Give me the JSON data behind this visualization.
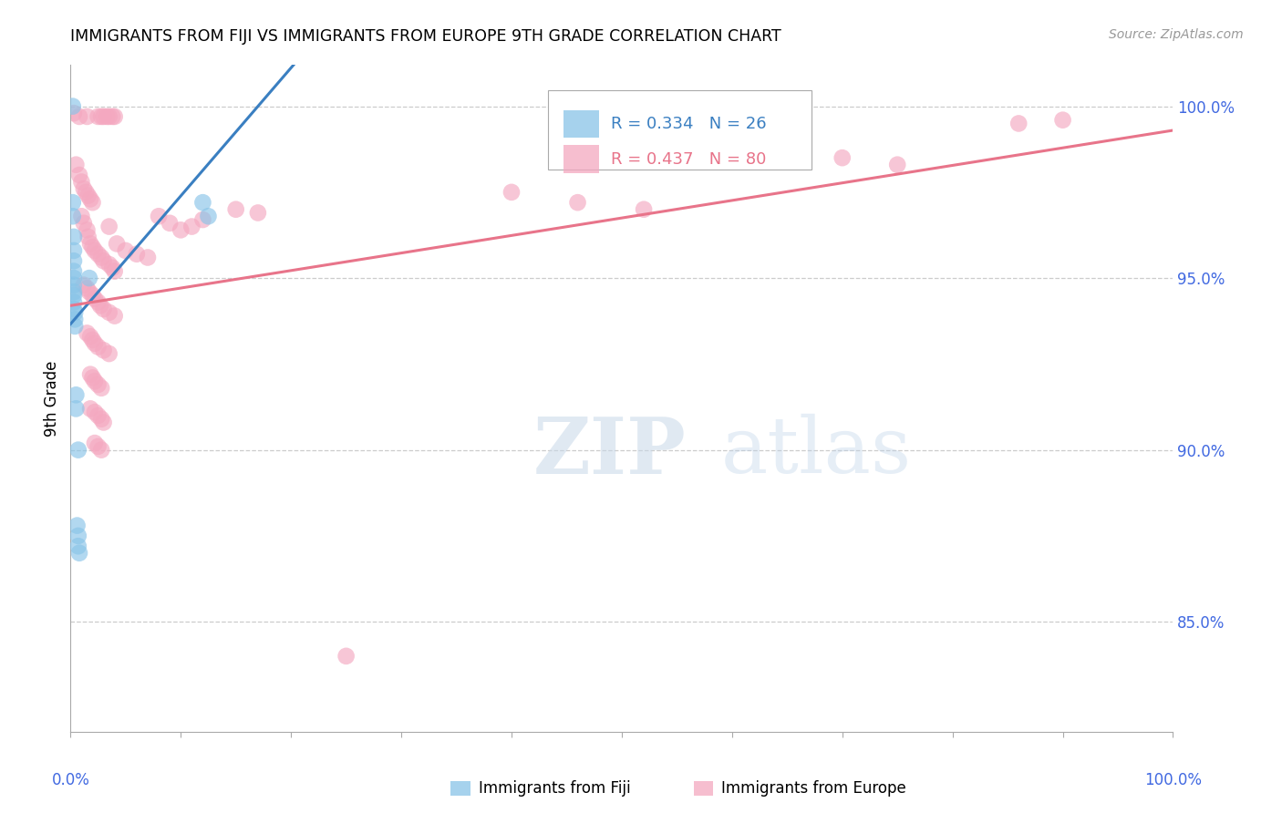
{
  "title": "IMMIGRANTS FROM FIJI VS IMMIGRANTS FROM EUROPE 9TH GRADE CORRELATION CHART",
  "source": "Source: ZipAtlas.com",
  "ylabel": "9th Grade",
  "watermark_zip": "ZIP",
  "watermark_atlas": "atlas",
  "ytick_labels": [
    "100.0%",
    "95.0%",
    "90.0%",
    "85.0%"
  ],
  "ytick_values": [
    1.0,
    0.95,
    0.9,
    0.85
  ],
  "xlim": [
    0.0,
    1.0
  ],
  "ylim": [
    0.818,
    1.012
  ],
  "fiji_color": "#89c4e8",
  "europe_color": "#f4a8c0",
  "fiji_line_color": "#3a7fc1",
  "europe_line_color": "#e8748a",
  "legend_fiji_R": "0.334",
  "legend_fiji_N": "26",
  "legend_europe_R": "0.437",
  "legend_europe_N": "80",
  "fiji_points": [
    [
      0.002,
      1.0
    ],
    [
      0.002,
      0.972
    ],
    [
      0.002,
      0.968
    ],
    [
      0.003,
      0.962
    ],
    [
      0.003,
      0.958
    ],
    [
      0.003,
      0.955
    ],
    [
      0.003,
      0.952
    ],
    [
      0.003,
      0.95
    ],
    [
      0.003,
      0.948
    ],
    [
      0.003,
      0.946
    ],
    [
      0.003,
      0.945
    ],
    [
      0.003,
      0.943
    ],
    [
      0.003,
      0.941
    ],
    [
      0.004,
      0.94
    ],
    [
      0.004,
      0.938
    ],
    [
      0.004,
      0.936
    ],
    [
      0.017,
      0.95
    ],
    [
      0.007,
      0.9
    ],
    [
      0.006,
      0.878
    ],
    [
      0.007,
      0.875
    ],
    [
      0.007,
      0.872
    ],
    [
      0.008,
      0.87
    ],
    [
      0.12,
      0.972
    ],
    [
      0.125,
      0.968
    ],
    [
      0.005,
      0.916
    ],
    [
      0.005,
      0.912
    ]
  ],
  "europe_points": [
    [
      0.003,
      0.998
    ],
    [
      0.008,
      0.997
    ],
    [
      0.015,
      0.997
    ],
    [
      0.025,
      0.997
    ],
    [
      0.028,
      0.997
    ],
    [
      0.03,
      0.997
    ],
    [
      0.033,
      0.997
    ],
    [
      0.035,
      0.997
    ],
    [
      0.038,
      0.997
    ],
    [
      0.04,
      0.997
    ],
    [
      0.005,
      0.983
    ],
    [
      0.008,
      0.98
    ],
    [
      0.01,
      0.978
    ],
    [
      0.012,
      0.976
    ],
    [
      0.014,
      0.975
    ],
    [
      0.016,
      0.974
    ],
    [
      0.018,
      0.973
    ],
    [
      0.02,
      0.972
    ],
    [
      0.01,
      0.968
    ],
    [
      0.012,
      0.966
    ],
    [
      0.015,
      0.964
    ],
    [
      0.016,
      0.962
    ],
    [
      0.018,
      0.96
    ],
    [
      0.02,
      0.959
    ],
    [
      0.022,
      0.958
    ],
    [
      0.025,
      0.957
    ],
    [
      0.028,
      0.956
    ],
    [
      0.03,
      0.955
    ],
    [
      0.035,
      0.954
    ],
    [
      0.038,
      0.953
    ],
    [
      0.04,
      0.952
    ],
    [
      0.012,
      0.948
    ],
    [
      0.015,
      0.947
    ],
    [
      0.017,
      0.946
    ],
    [
      0.02,
      0.945
    ],
    [
      0.022,
      0.944
    ],
    [
      0.025,
      0.943
    ],
    [
      0.027,
      0.942
    ],
    [
      0.03,
      0.941
    ],
    [
      0.035,
      0.94
    ],
    [
      0.04,
      0.939
    ],
    [
      0.015,
      0.934
    ],
    [
      0.018,
      0.933
    ],
    [
      0.02,
      0.932
    ],
    [
      0.022,
      0.931
    ],
    [
      0.025,
      0.93
    ],
    [
      0.03,
      0.929
    ],
    [
      0.035,
      0.928
    ],
    [
      0.018,
      0.922
    ],
    [
      0.02,
      0.921
    ],
    [
      0.022,
      0.92
    ],
    [
      0.025,
      0.919
    ],
    [
      0.028,
      0.918
    ],
    [
      0.018,
      0.912
    ],
    [
      0.022,
      0.911
    ],
    [
      0.025,
      0.91
    ],
    [
      0.028,
      0.909
    ],
    [
      0.03,
      0.908
    ],
    [
      0.022,
      0.902
    ],
    [
      0.025,
      0.901
    ],
    [
      0.028,
      0.9
    ],
    [
      0.05,
      0.958
    ],
    [
      0.06,
      0.957
    ],
    [
      0.07,
      0.956
    ],
    [
      0.08,
      0.968
    ],
    [
      0.09,
      0.966
    ],
    [
      0.1,
      0.964
    ],
    [
      0.11,
      0.965
    ],
    [
      0.12,
      0.967
    ],
    [
      0.15,
      0.97
    ],
    [
      0.17,
      0.969
    ],
    [
      0.4,
      0.975
    ],
    [
      0.46,
      0.972
    ],
    [
      0.52,
      0.97
    ],
    [
      0.7,
      0.985
    ],
    [
      0.75,
      0.983
    ],
    [
      0.86,
      0.995
    ],
    [
      0.9,
      0.996
    ],
    [
      0.25,
      0.84
    ],
    [
      0.035,
      0.965
    ],
    [
      0.042,
      0.96
    ]
  ],
  "fiji_trend": [
    0.0,
    1.0,
    0.947,
    0.993
  ],
  "europe_trend": [
    0.0,
    1.0,
    0.942,
    0.993
  ]
}
